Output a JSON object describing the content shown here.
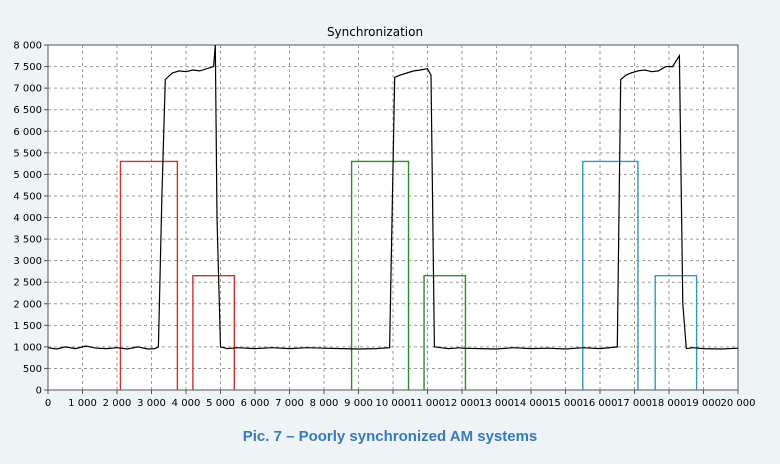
{
  "caption": "Pic. 7 – Poorly synchronized AM systems",
  "chart_data": {
    "type": "line",
    "title": "Synchronization",
    "xlim": [
      0,
      20000
    ],
    "ylim": [
      0,
      8000
    ],
    "x_ticks": [
      0,
      1000,
      2000,
      3000,
      4000,
      5000,
      6000,
      7000,
      8000,
      9000,
      10000,
      11000,
      12000,
      13000,
      14000,
      15000,
      16000,
      17000,
      18000,
      19000,
      20000
    ],
    "x_tick_labels": [
      "0",
      "1 000",
      "2 000",
      "3 000",
      "4 000",
      "5 000",
      "6 000",
      "7 000",
      "8 000",
      "9 000",
      "10 000",
      "11 000",
      "12 000",
      "13 000",
      "14 000",
      "15 000",
      "16 000",
      "17 000",
      "18 000",
      "19 000",
      "20 000"
    ],
    "y_ticks": [
      0,
      500,
      1000,
      1500,
      2000,
      2500,
      3000,
      3500,
      4000,
      4500,
      5000,
      5500,
      6000,
      6500,
      7000,
      7500,
      8000
    ],
    "y_tick_labels": [
      "0",
      "500",
      "1 000",
      "1 500",
      "2 000",
      "2 500",
      "3 000",
      "3 500",
      "4 000",
      "4 500",
      "5 000",
      "5 500",
      "6 000",
      "6 500",
      "7 000",
      "7 500",
      "8 000"
    ],
    "grid": true,
    "series": [
      {
        "color": "#000000",
        "x": [
          0,
          250,
          500,
          800,
          1100,
          1400,
          1700,
          2000,
          2300,
          2600,
          2900,
          3100,
          3200,
          3300,
          3400,
          3600,
          3800,
          4000,
          4200,
          4400,
          4600,
          4800,
          4850,
          4900,
          5000,
          5200,
          5500,
          6000,
          6500,
          7000,
          7500,
          8000,
          8500,
          9000,
          9500,
          9900,
          10050,
          10200,
          10400,
          10600,
          10800,
          11000,
          11100,
          11200,
          11400,
          11600,
          11800,
          11900,
          12000,
          12500,
          13000,
          13500,
          14000,
          14500,
          15000,
          15500,
          16000,
          16500,
          16600,
          16750,
          16900,
          17100,
          17300,
          17500,
          17700,
          17900,
          18100,
          18300,
          18400,
          18500,
          18700,
          19000,
          19500,
          20000
        ],
        "y": [
          980,
          950,
          1000,
          960,
          1020,
          970,
          960,
          980,
          950,
          1000,
          950,
          960,
          1000,
          4500,
          7200,
          7350,
          7400,
          7380,
          7420,
          7400,
          7450,
          7500,
          8000,
          4000,
          1000,
          960,
          980,
          960,
          980,
          960,
          980,
          970,
          960,
          950,
          960,
          980,
          7250,
          7300,
          7350,
          7400,
          7420,
          7450,
          7300,
          1000,
          980,
          960,
          970,
          980,
          970,
          960,
          950,
          980,
          960,
          970,
          950,
          980,
          960,
          1000,
          7200,
          7300,
          7350,
          7400,
          7420,
          7380,
          7400,
          7500,
          7500,
          7750,
          2000,
          960,
          980,
          960,
          950,
          970
        ]
      }
    ],
    "rectangles": [
      {
        "color": "#cc3333",
        "x": [
          2100,
          3750
        ],
        "height": 5300
      },
      {
        "color": "#cc3333",
        "x": [
          4200,
          5400
        ],
        "height": 2650
      },
      {
        "color": "#2e8b2e",
        "x": [
          8800,
          10450
        ],
        "height": 5300
      },
      {
        "color": "#2e8b2e",
        "x": [
          10900,
          12100
        ],
        "height": 2650
      },
      {
        "color": "#3399bb",
        "x": [
          15500,
          17100
        ],
        "height": 5300
      },
      {
        "color": "#3399bb",
        "x": [
          17600,
          18800
        ],
        "height": 2650
      }
    ]
  }
}
